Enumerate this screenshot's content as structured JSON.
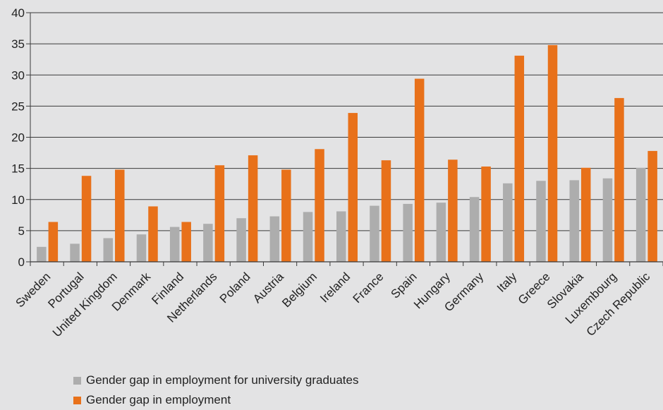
{
  "chart_data": {
    "type": "bar",
    "title": "",
    "xlabel": "",
    "ylabel": "",
    "ylim": [
      0,
      40
    ],
    "yticks": [
      0,
      5,
      10,
      15,
      20,
      25,
      30,
      35,
      40
    ],
    "grid": true,
    "legend_placement": "bottom",
    "categories": [
      "Sweden",
      "Portugal",
      "United Kingdom",
      "Denmark",
      "Finland",
      "Netherlands",
      "Poland",
      "Austria",
      "Belgium",
      "Ireland",
      "France",
      "Spain",
      "Hungary",
      "Germany",
      "Italy",
      "Greece",
      "Slovakia",
      "Luxembourg",
      "Czech Republic"
    ],
    "series": [
      {
        "name": "Gender gap in employment for university graduates",
        "color": "#adadad",
        "values": [
          2.4,
          2.9,
          3.8,
          4.4,
          5.6,
          6.1,
          7.0,
          7.3,
          8.0,
          8.1,
          9.0,
          9.3,
          9.5,
          10.4,
          12.6,
          13.0,
          13.1,
          13.4,
          15.1
        ]
      },
      {
        "name": "Gender gap in employment",
        "color": "#e8711a",
        "values": [
          6.4,
          13.8,
          14.8,
          8.9,
          6.4,
          15.5,
          17.1,
          14.8,
          18.1,
          23.9,
          16.3,
          29.4,
          16.4,
          15.3,
          33.1,
          34.8,
          15.1,
          26.3,
          17.8
        ]
      }
    ]
  }
}
